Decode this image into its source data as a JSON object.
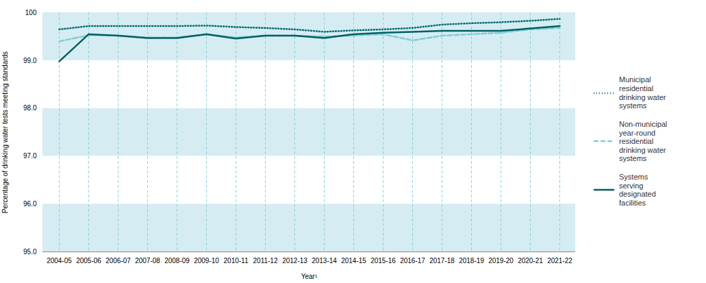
{
  "chart_data": {
    "type": "line",
    "xlabel": "Year¹",
    "ylabel": "Percentage of drinking water tests meeting standards",
    "categories": [
      "2004-05",
      "2005-06",
      "2006-07",
      "2007-08",
      "2008-09",
      "2009-10",
      "2010-11",
      "2011-12",
      "2012-13",
      "2013-14",
      "2014-15",
      "2015-16",
      "2016-17",
      "2017-18",
      "2018-19",
      "2019-20",
      "2020-21",
      "2021-22"
    ],
    "series": [
      {
        "name": "Municipal\nresidential\ndrinking water\nsystems",
        "color": "#006d6f",
        "line_style": "dotted",
        "values": [
          99.65,
          99.72,
          99.72,
          99.72,
          99.72,
          99.73,
          99.7,
          99.68,
          99.65,
          99.6,
          99.63,
          99.65,
          99.68,
          99.75,
          99.78,
          99.8,
          99.83,
          99.87
        ]
      },
      {
        "name": "Non-municipal\nyear-round\nresidential\ndrinking water\nsystems",
        "color": "#7ecfd4",
        "line_style": "dashed",
        "values": [
          99.4,
          99.53,
          99.52,
          99.48,
          99.48,
          99.55,
          99.48,
          99.52,
          99.52,
          99.5,
          99.52,
          99.55,
          99.42,
          99.52,
          99.55,
          99.58,
          99.65,
          99.68
        ]
      },
      {
        "name": "Systems\nserving\ndesignated\nfacilities",
        "color": "#005f61",
        "line_style": "solid",
        "values": [
          98.98,
          99.55,
          99.52,
          99.47,
          99.47,
          99.55,
          99.46,
          99.52,
          99.52,
          99.47,
          99.55,
          99.58,
          99.6,
          99.62,
          99.62,
          99.62,
          99.67,
          99.72
        ]
      }
    ],
    "ylim": [
      95,
      100
    ],
    "yticks": [
      {
        "value": 95,
        "label": "95.0"
      },
      {
        "value": 96,
        "label": "96.0"
      },
      {
        "value": 97,
        "label": "97.0"
      },
      {
        "value": 98,
        "label": "98.0"
      },
      {
        "value": 99,
        "label": "99.0"
      },
      100
    ],
    "grid": true,
    "legend": "right"
  }
}
